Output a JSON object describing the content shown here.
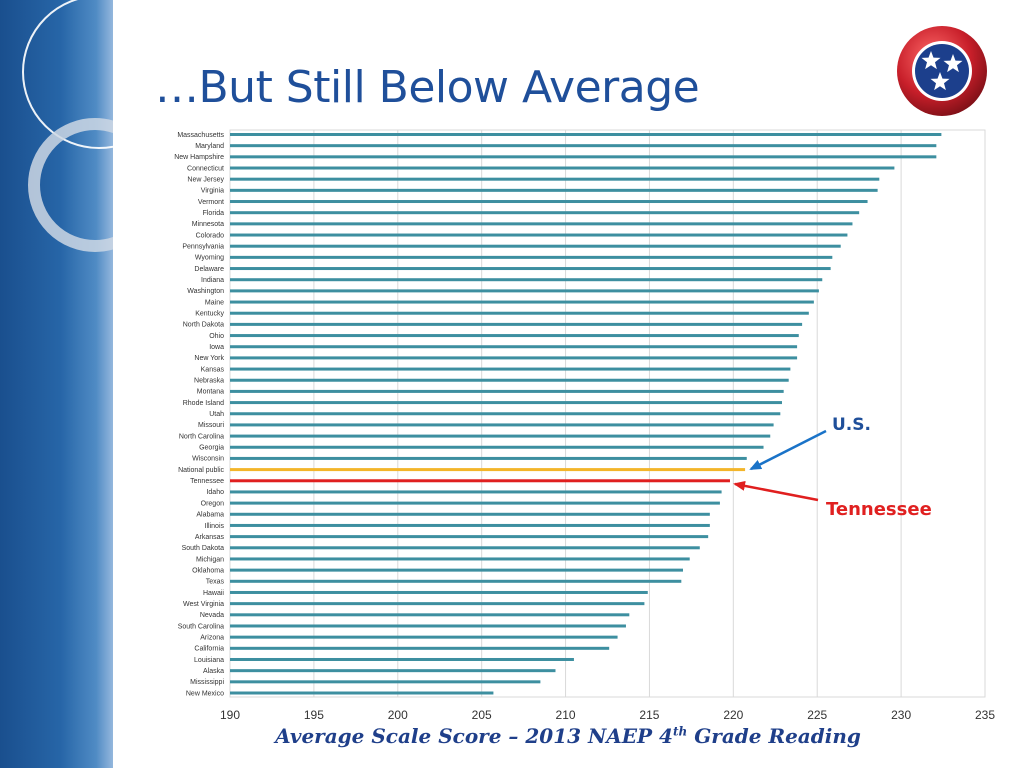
{
  "slide": {
    "title": "…But Still Below Average"
  },
  "chart_data": {
    "type": "bar",
    "orientation": "horizontal",
    "categories": [
      "Massachusetts",
      "Maryland",
      "New Hampshire",
      "Connecticut",
      "New Jersey",
      "Virginia",
      "Vermont",
      "Florida",
      "Minnesota",
      "Colorado",
      "Pennsylvania",
      "Wyoming",
      "Delaware",
      "Indiana",
      "Washington",
      "Maine",
      "Kentucky",
      "North Dakota",
      "Ohio",
      "Iowa",
      "New York",
      "Kansas",
      "Nebraska",
      "Montana",
      "Rhode Island",
      "Utah",
      "Missouri",
      "North Carolina",
      "Georgia",
      "Wisconsin",
      "National public",
      "Tennessee",
      "Idaho",
      "Oregon",
      "Alabama",
      "Illinois",
      "Arkansas",
      "South Dakota",
      "Michigan",
      "Oklahoma",
      "Texas",
      "Hawaii",
      "West Virginia",
      "Nevada",
      "South Carolina",
      "Arizona",
      "California",
      "Louisiana",
      "Alaska",
      "Mississippi",
      "New Mexico"
    ],
    "values": [
      232.4,
      232.1,
      232.1,
      229.6,
      228.7,
      228.6,
      228.0,
      227.5,
      227.1,
      226.8,
      226.4,
      225.9,
      225.8,
      225.3,
      225.1,
      224.8,
      224.5,
      224.1,
      223.9,
      223.8,
      223.8,
      223.4,
      223.3,
      223.0,
      222.9,
      222.8,
      222.4,
      222.2,
      221.8,
      220.8,
      220.7,
      219.8,
      219.3,
      219.2,
      218.6,
      218.6,
      218.5,
      218.0,
      217.4,
      217.0,
      216.9,
      214.9,
      214.7,
      213.8,
      213.6,
      213.1,
      212.6,
      210.5,
      209.4,
      208.5,
      205.7
    ],
    "highlights": [
      {
        "category": "National public",
        "color": "#f3b52a"
      },
      {
        "category": "Tennessee",
        "color": "#e01f1f"
      }
    ],
    "default_bar_color": "#3d8fa0",
    "x_ticks": [
      190,
      195,
      200,
      205,
      210,
      215,
      220,
      225,
      230,
      235
    ],
    "xlim": [
      190,
      235
    ],
    "xlabel_parts": {
      "main": "Average Scale Score – 2013 NAEP 4",
      "sup": "th",
      "tail": " Grade Reading"
    },
    "grid": "vertical",
    "annotations": [
      {
        "text": "U.S.",
        "color": "#1f4f9a",
        "points_to": "National public"
      },
      {
        "text": "Tennessee",
        "color": "#e02020",
        "points_to": "Tennessee"
      }
    ]
  },
  "logo": {
    "name": "tennessee-tristar-logo",
    "colors": {
      "outer": "#c81f2a",
      "inner": "#1c3f8c",
      "stars": "#ffffff"
    }
  },
  "colors": {
    "title": "#1f4f9a",
    "axis_title": "#1f3f8a",
    "sidebar": "#2766a8"
  }
}
